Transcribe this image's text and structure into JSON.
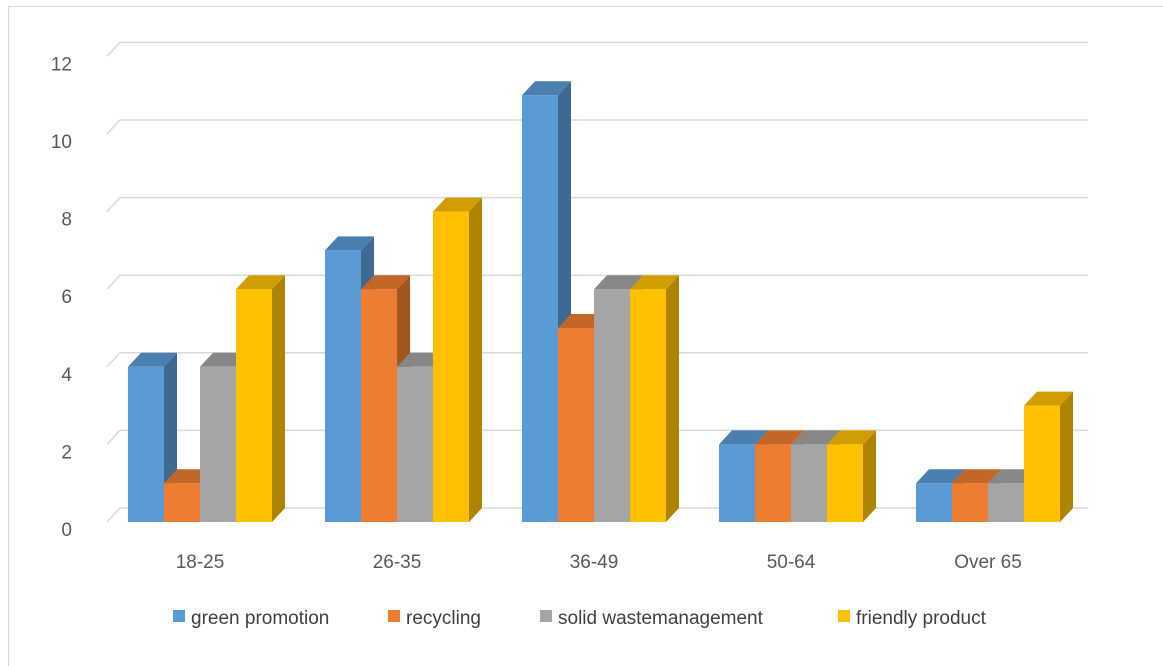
{
  "chart_data": {
    "type": "bar",
    "categories": [
      "18-25",
      "26-35",
      "36-49",
      "50-64",
      "Over 65"
    ],
    "series": [
      {
        "name": "green promotion",
        "values": [
          4,
          7,
          11,
          2,
          1
        ],
        "color": "#5b9bd5"
      },
      {
        "name": "recycling",
        "values": [
          1,
          6,
          5,
          2,
          1
        ],
        "color": "#ed7d31"
      },
      {
        "name": "solid wastemanagement",
        "values": [
          4,
          4,
          6,
          2,
          1
        ],
        "color": "#a5a5a5"
      },
      {
        "name": "friendly product",
        "values": [
          6,
          8,
          6,
          2,
          3
        ],
        "color": "#ffc000"
      }
    ],
    "ylim": [
      0,
      12
    ],
    "yticks": [
      0,
      2,
      4,
      6,
      8,
      10,
      12
    ],
    "grid": true,
    "legend": "bottom",
    "style": "3d-clustered-column"
  }
}
